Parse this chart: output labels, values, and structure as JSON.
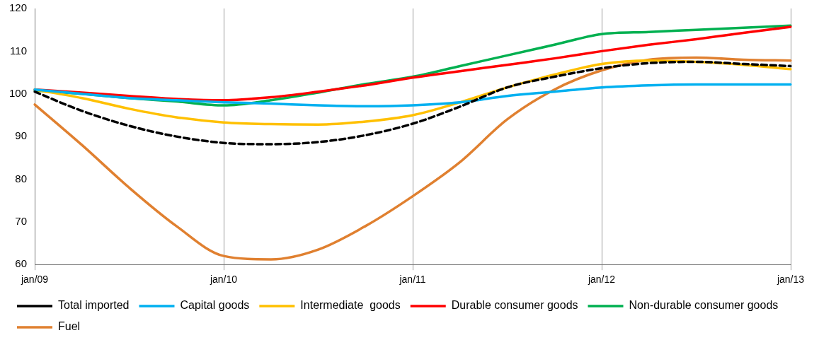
{
  "chart_data": {
    "type": "line",
    "categories": [
      "jan/09",
      null,
      null,
      null,
      "jan/10",
      null,
      null,
      null,
      "jan/11",
      null,
      null,
      null,
      "jan/12",
      null,
      null,
      null,
      "jan/13"
    ],
    "ylim": [
      60,
      120
    ],
    "yticks": [
      60,
      70,
      80,
      90,
      100,
      110,
      120
    ],
    "grid": "x",
    "legend": "bottom",
    "marker": "none",
    "series": [
      {
        "name": "Total imported",
        "color": "#000000",
        "line_style": "dashed",
        "values": [
          100.5,
          96,
          92.5,
          90,
          88.5,
          88.2,
          88.7,
          90.3,
          93,
          97,
          101.5,
          104,
          106,
          107.2,
          107.5,
          107,
          106.5
        ]
      },
      {
        "name": "Capital goods",
        "color": "#00b0f0",
        "values": [
          101,
          100,
          99,
          98.5,
          98,
          97.7,
          97.3,
          97.1,
          97.3,
          98,
          99.5,
          100.5,
          101.5,
          102,
          102.2,
          102.2,
          102.2
        ]
      },
      {
        "name": "Intermediate  goods",
        "color": "#ffc000",
        "values": [
          101,
          99,
          96.5,
          94.5,
          93.3,
          92.9,
          92.8,
          93.5,
          95,
          98,
          101.5,
          104.5,
          107,
          107.8,
          107.5,
          106.8,
          105.8
        ]
      },
      {
        "name": "Durable consumer goods",
        "color": "#ff0000",
        "values": [
          101,
          100.3,
          99.5,
          98.8,
          98.5,
          99.2,
          100.5,
          102,
          103.8,
          105.3,
          106.8,
          108.3,
          110,
          111.5,
          112.8,
          114.3,
          115.7
        ]
      },
      {
        "name": "Non-durable consumer goods",
        "color": "#00b050",
        "values": [
          100.8,
          100,
          99,
          98.2,
          97.3,
          98.5,
          100.3,
          102.3,
          104,
          106.5,
          109,
          111.5,
          114,
          114.5,
          115,
          115.5,
          116
        ]
      },
      {
        "name": "Fuel",
        "color": "#e08030",
        "values": [
          97.5,
          88,
          78,
          69,
          62,
          61.2,
          63.5,
          69,
          76,
          84,
          94,
          101,
          105.5,
          108,
          108.5,
          108,
          107.8
        ]
      }
    ]
  }
}
